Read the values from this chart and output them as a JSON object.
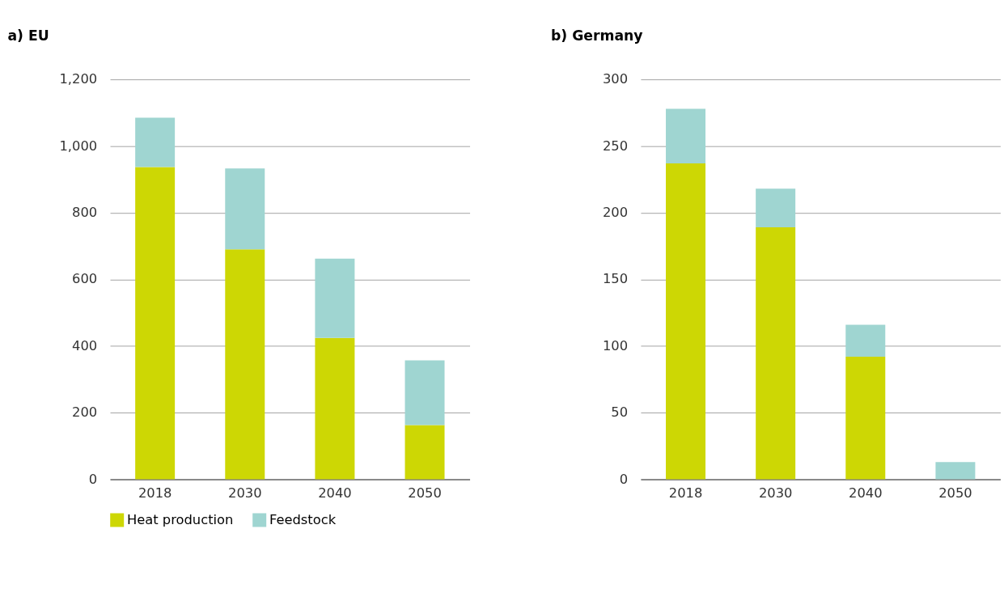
{
  "chart_data": [
    {
      "type": "bar",
      "title": "a)  EU",
      "categories": [
        "2018",
        "2030",
        "2040",
        "2050"
      ],
      "stacked": true,
      "series": [
        {
          "name": "Heat production",
          "color": "#cdd704",
          "values": [
            937,
            690,
            424,
            163
          ]
        },
        {
          "name": "Feedstock",
          "color": "#9fd5d1",
          "values": [
            148,
            243,
            238,
            194
          ]
        }
      ],
      "ylim": [
        0,
        1200
      ],
      "yticks": [
        {
          "value": 0,
          "label": "0"
        },
        {
          "value": 200,
          "label": "200"
        },
        {
          "value": 400,
          "label": "400"
        },
        {
          "value": 600,
          "label": "600"
        },
        {
          "value": 800,
          "label": "800"
        },
        {
          "value": 1000,
          "label": "1,000"
        },
        {
          "value": 1200,
          "label": "1,200"
        }
      ],
      "grid": "y",
      "legend": "bottom"
    },
    {
      "type": "bar",
      "title": "b)  Germany",
      "categories": [
        "2018",
        "2030",
        "2040",
        "2050"
      ],
      "stacked": true,
      "series": [
        {
          "name": "Heat production",
          "color": "#cdd704",
          "values": [
            237,
            189,
            92,
            0
          ]
        },
        {
          "name": "Feedstock",
          "color": "#9fd5d1",
          "values": [
            41,
            29,
            24,
            13
          ]
        }
      ],
      "ylim": [
        0,
        300
      ],
      "yticks": [
        0,
        50,
        100,
        150,
        200,
        250,
        300
      ],
      "grid": "y",
      "legend": "bottom"
    }
  ]
}
